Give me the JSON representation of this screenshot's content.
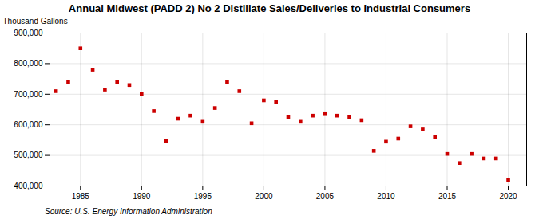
{
  "chart_data": {
    "type": "scatter",
    "title": "Annual Midwest (PADD 2) No 2 Distillate Sales/Deliveries to Industrial Consumers",
    "ylabel": "Thousand Gallons",
    "source": "Source: U.S. Energy Information Administration",
    "x": [
      1983,
      1984,
      1985,
      1986,
      1987,
      1988,
      1989,
      1990,
      1991,
      1992,
      1993,
      1994,
      1995,
      1996,
      1997,
      1998,
      1999,
      2000,
      2001,
      2002,
      2003,
      2004,
      2005,
      2006,
      2007,
      2008,
      2009,
      2010,
      2011,
      2012,
      2013,
      2014,
      2015,
      2016,
      2017,
      2018,
      2019,
      2020
    ],
    "values": [
      710000,
      740000,
      850000,
      780000,
      715000,
      740000,
      730000,
      700000,
      645000,
      547000,
      620000,
      630000,
      610000,
      655000,
      740000,
      710000,
      605000,
      680000,
      675000,
      625000,
      610000,
      630000,
      635000,
      630000,
      625000,
      615000,
      515000,
      545000,
      555000,
      595000,
      585000,
      560000,
      505000,
      475000,
      505000,
      490000,
      490000,
      420000
    ],
    "color": "#cc0000",
    "marker": "square",
    "xlim": [
      1982.5,
      2021.5
    ],
    "xticks": [
      1985,
      1990,
      1995,
      2000,
      2005,
      2010,
      2015,
      2020
    ],
    "ylim": [
      400000,
      900000
    ],
    "yticks": [
      {
        "value": 400000,
        "label": "400,000"
      },
      {
        "value": 500000,
        "label": "500,000"
      },
      {
        "value": 600000,
        "label": "600,000"
      },
      {
        "value": 700000,
        "label": "700,000"
      },
      {
        "value": 800000,
        "label": "800,000"
      },
      {
        "value": 900000,
        "label": "900,000"
      }
    ],
    "grid": true
  }
}
